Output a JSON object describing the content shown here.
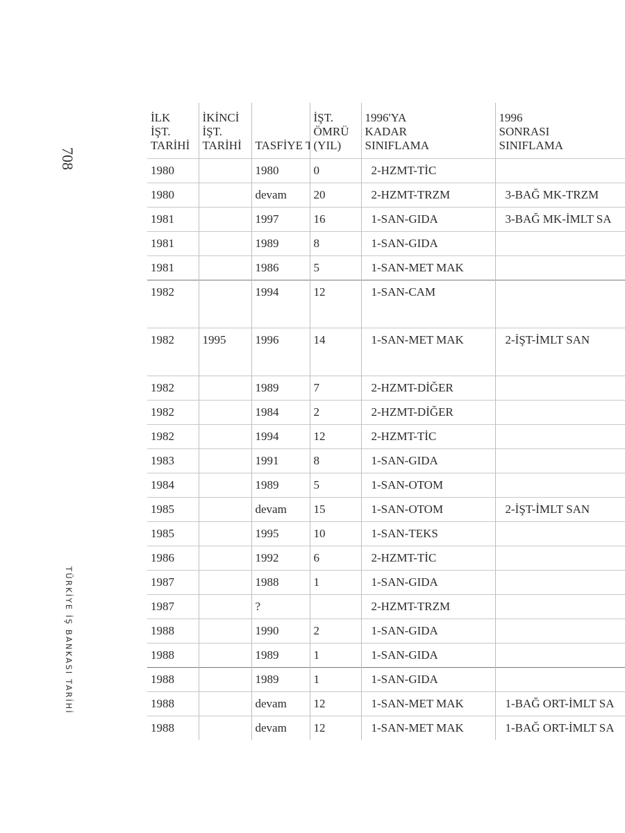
{
  "page_number": "708",
  "running_title": "TÜRKİYE İŞ BANKASI TARİHİ",
  "table": {
    "headers": [
      [
        "İLK",
        "İŞT.",
        "TARİHİ"
      ],
      [
        "İKİNCİ",
        "İŞT.",
        "TARİHİ"
      ],
      [
        "",
        "",
        "TASFİYE TARİHİ"
      ],
      [
        "İŞT.",
        "ÖMRÜ",
        "(YIL)"
      ],
      [
        "1996'YA",
        "KADAR",
        "SINIFLAMA"
      ],
      [
        "1996",
        "SONRASI",
        "SINIFLAMA"
      ]
    ],
    "rows": [
      [
        "1980",
        "",
        "1980",
        "0",
        "2-HZMT-TİC",
        ""
      ],
      [
        "1980",
        "",
        "devam",
        "20",
        "2-HZMT-TRZM",
        "3-BAĞ MK-TRZM"
      ],
      [
        "1981",
        "",
        "1997",
        "16",
        "1-SAN-GIDA",
        "3-BAĞ MK-İMLT SA"
      ],
      [
        "1981",
        "",
        "1989",
        "8",
        "1-SAN-GIDA",
        ""
      ],
      [
        "1981",
        "",
        "1986",
        "5",
        "1-SAN-MET MAK",
        ""
      ],
      [
        "1982",
        "",
        "1994",
        "12",
        "1-SAN-CAM",
        ""
      ],
      [
        "1982",
        "1995",
        "1996",
        "14",
        "1-SAN-MET MAK",
        "2-İŞT-İMLT SAN"
      ],
      [
        "1982",
        "",
        "1989",
        "7",
        "2-HZMT-DİĞER",
        ""
      ],
      [
        "1982",
        "",
        "1984",
        "2",
        "2-HZMT-DİĞER",
        ""
      ],
      [
        "1982",
        "",
        "1994",
        "12",
        "2-HZMT-TİC",
        ""
      ],
      [
        "1983",
        "",
        "1991",
        "8",
        "1-SAN-GIDA",
        ""
      ],
      [
        "1984",
        "",
        "1989",
        "5",
        "1-SAN-OTOM",
        ""
      ],
      [
        "1985",
        "",
        "devam",
        "15",
        "1-SAN-OTOM",
        "2-İŞT-İMLT SAN"
      ],
      [
        "1985",
        "",
        "1995",
        "10",
        "1-SAN-TEKS",
        ""
      ],
      [
        "1986",
        "",
        "1992",
        "6",
        "2-HZMT-TİC",
        ""
      ],
      [
        "1987",
        "",
        "1988",
        "1",
        "1-SAN-GIDA",
        ""
      ],
      [
        "1987",
        "",
        "?",
        "",
        "2-HZMT-TRZM",
        ""
      ],
      [
        "1988",
        "",
        "1990",
        "2",
        "1-SAN-GIDA",
        ""
      ],
      [
        "1988",
        "",
        "1989",
        "1",
        "1-SAN-GIDA",
        ""
      ],
      [
        "1988",
        "",
        "1989",
        "1",
        "1-SAN-GIDA",
        ""
      ],
      [
        "1988",
        "",
        "devam",
        "12",
        "1-SAN-MET MAK",
        "1-BAĞ ORT-İMLT SA"
      ],
      [
        "1988",
        "",
        "devam",
        "12",
        "1-SAN-MET MAK",
        "1-BAĞ ORT-İMLT SA"
      ]
    ]
  }
}
